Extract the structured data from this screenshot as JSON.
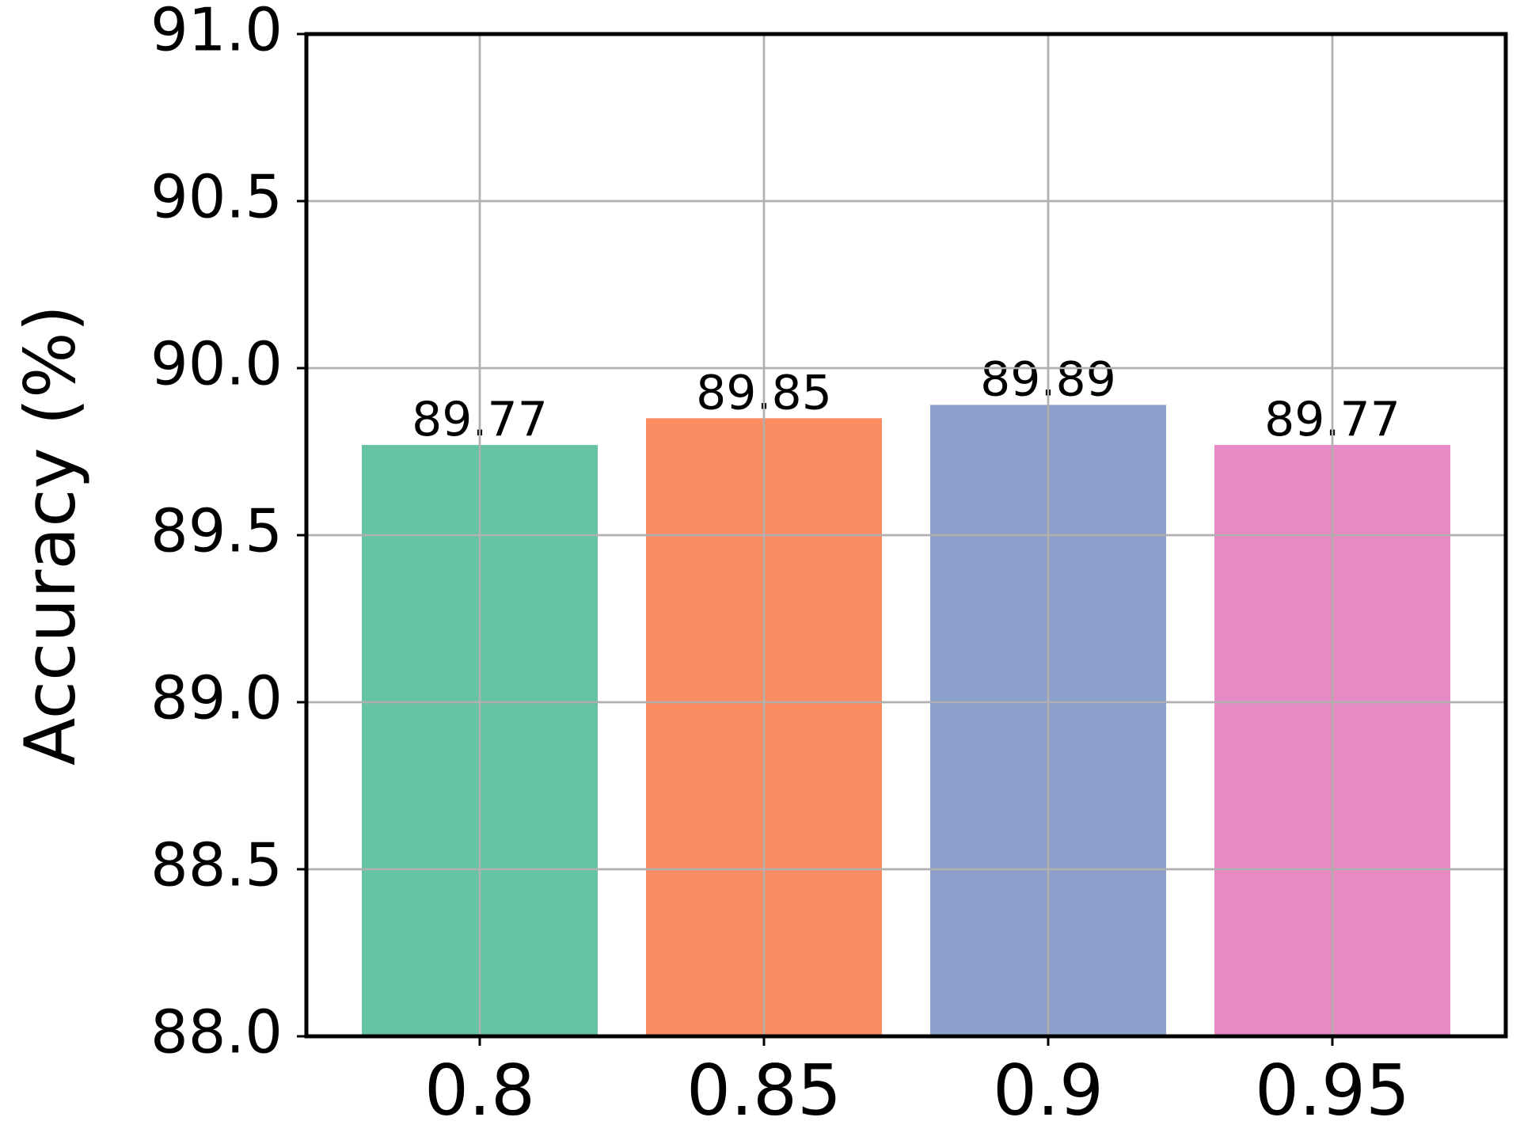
{
  "chart_data": {
    "type": "bar",
    "y_label": "Accuracy (%)",
    "categories": [
      "0.8",
      "0.85",
      "0.9",
      "0.95"
    ],
    "values": [
      89.77,
      89.85,
      89.89,
      89.77
    ],
    "colors": [
      "#66c2a5",
      "#fc8d62",
      "#8da0cb",
      "#e78ac3"
    ],
    "ylim": [
      88,
      91
    ],
    "yticks": [
      {
        "value": 88,
        "label": "88.0"
      },
      88.5,
      {
        "value": 89,
        "label": "89.0"
      },
      89.5,
      {
        "value": 90,
        "label": "90.0"
      },
      90.5,
      {
        "value": 91,
        "label": "91.0"
      }
    ],
    "grid": true
  }
}
